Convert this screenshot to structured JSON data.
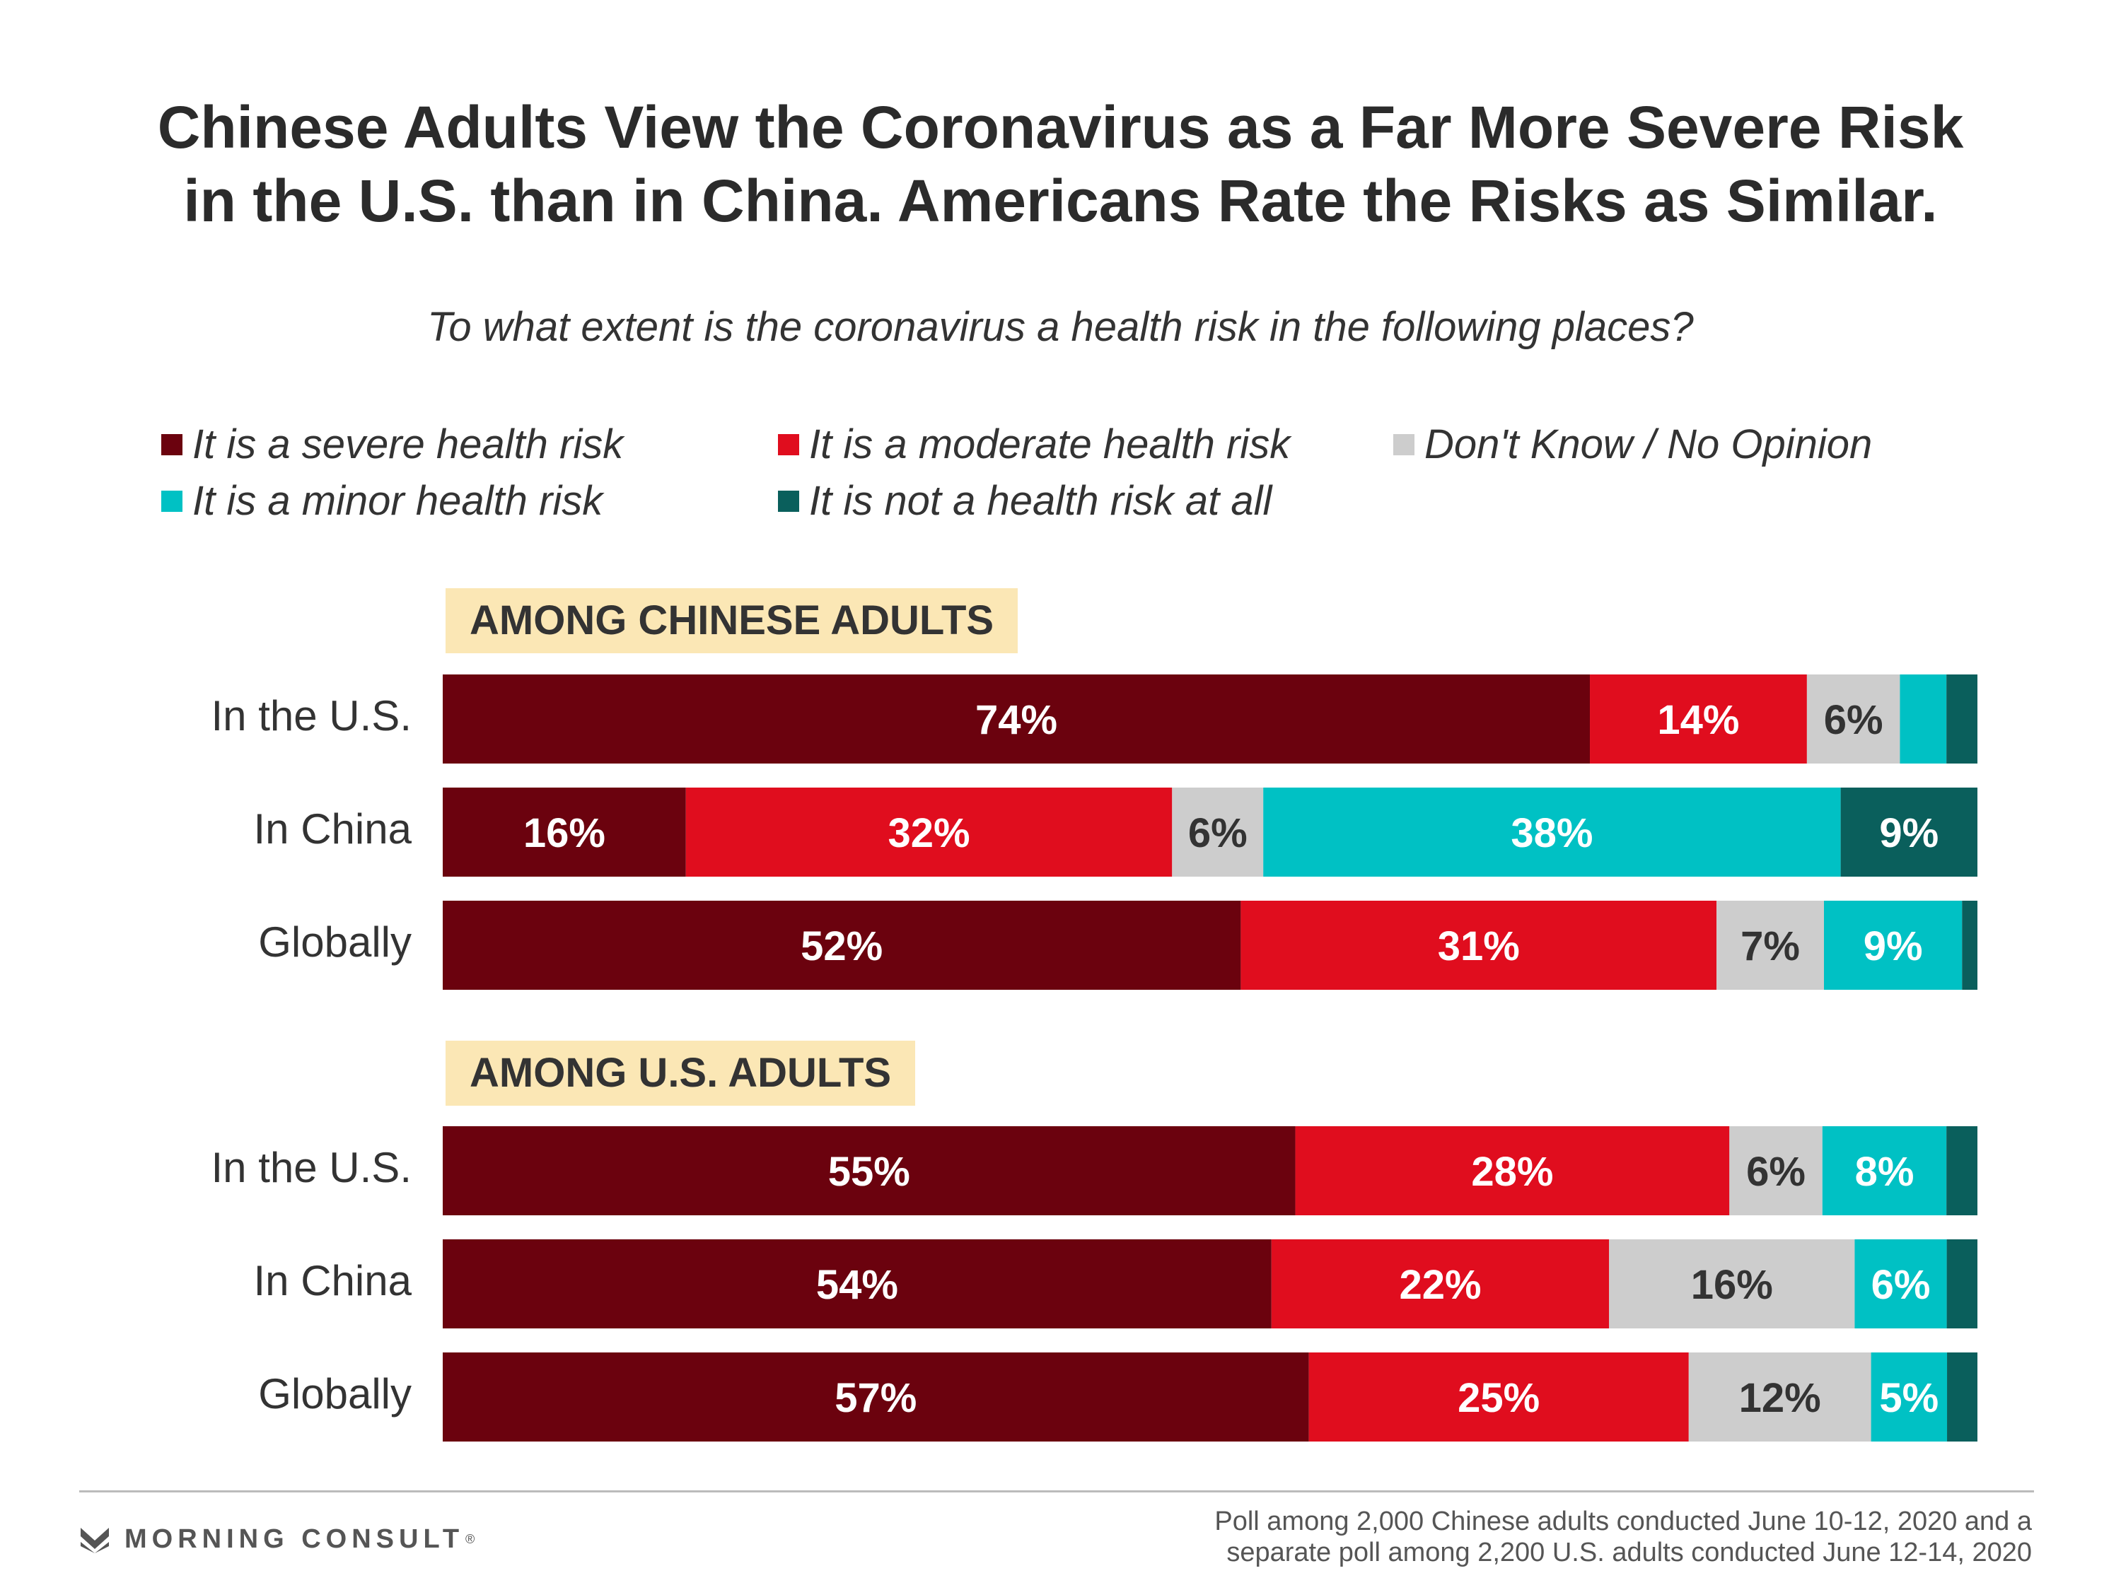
{
  "title_line1": "Chinese Adults View the Coronavirus as a Far More Severe Risk",
  "title_line2": "in the U.S. than in China. Americans Rate the Risks as Similar.",
  "subtitle": "To what extent is the coronavirus a health risk in the following places?",
  "colors": {
    "severe": "#6b020e",
    "moderate": "#e00d1e",
    "dont_know": "#cdcdcd",
    "minor": "#00c1c4",
    "not_at_all": "#0a5f5c"
  },
  "legend": [
    {
      "key": "severe",
      "label": "It is a severe health risk"
    },
    {
      "key": "moderate",
      "label": "It is a moderate health risk"
    },
    {
      "key": "dont_know",
      "label": "Don't Know / No Opinion"
    },
    {
      "key": "minor",
      "label": "It is a minor health risk"
    },
    {
      "key": "not_at_all",
      "label": "It is not a health risk at all"
    }
  ],
  "groups": [
    {
      "label": "AMONG CHINESE ADULTS"
    },
    {
      "label": "AMONG U.S. ADULTS"
    }
  ],
  "chart_data": {
    "type": "bar",
    "orientation": "horizontal",
    "stacked": true,
    "unit": "%",
    "series_order": [
      "It is a severe health risk",
      "It is a moderate health risk",
      "Don't Know / No Opinion",
      "It is a minor health risk",
      "It is not a health risk at all"
    ],
    "groups": [
      {
        "name": "AMONG CHINESE ADULTS",
        "rows": [
          {
            "category": "In the U.S.",
            "values": [
              74,
              14,
              6,
              3,
              2
            ],
            "labels": [
              "74%",
              "14%",
              "6%",
              "",
              ""
            ]
          },
          {
            "category": "In China",
            "values": [
              16,
              32,
              6,
              38,
              9
            ],
            "labels": [
              "16%",
              "32%",
              "6%",
              "38%",
              "9%"
            ]
          },
          {
            "category": "Globally",
            "values": [
              52,
              31,
              7,
              9,
              1
            ],
            "labels": [
              "52%",
              "31%",
              "7%",
              "9%",
              ""
            ]
          }
        ]
      },
      {
        "name": "AMONG U.S. ADULTS",
        "rows": [
          {
            "category": "In the U.S.",
            "values": [
              55,
              28,
              6,
              8,
              2
            ],
            "labels": [
              "55%",
              "28%",
              "6%",
              "8%",
              ""
            ]
          },
          {
            "category": "In China",
            "values": [
              54,
              22,
              16,
              6,
              2
            ],
            "labels": [
              "54%",
              "22%",
              "16%",
              "6%",
              ""
            ]
          },
          {
            "category": "Globally",
            "values": [
              57,
              25,
              12,
              5,
              2
            ],
            "labels": [
              "57%",
              "25%",
              "12%",
              "5%",
              ""
            ]
          }
        ]
      }
    ]
  },
  "brand": {
    "name": "MORNING CONSULT",
    "mark": "®"
  },
  "footnote_line1": "Poll among 2,000 Chinese adults conducted June 10-12, 2020 and a",
  "footnote_line2": "separate poll among 2,200 U.S. adults conducted June 12-14, 2020"
}
